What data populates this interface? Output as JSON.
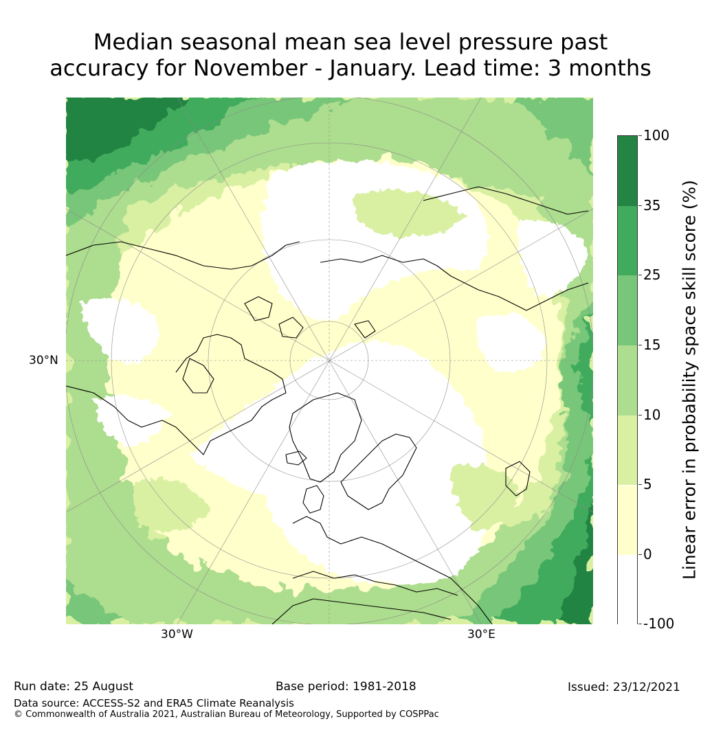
{
  "title": {
    "line1": "Median seasonal mean sea level pressure past",
    "line2": "accuracy for November - January. Lead time: 3 months"
  },
  "map": {
    "projection": "north-polar-stereographic",
    "lat_label": "30°N",
    "lon_labels": [
      "30°W",
      "30°E"
    ],
    "land_outline_color": "#000000",
    "graticule_color": "#8a8a8a"
  },
  "colorbar": {
    "title": "Linear error in probability space skill score (%)",
    "levels": [
      "100",
      "35",
      "25",
      "15",
      "10",
      "5",
      "0",
      "-100"
    ],
    "bins": [
      {
        "range": "35 to 100",
        "color": "#238443"
      },
      {
        "range": "25 to 35",
        "color": "#41ab5d"
      },
      {
        "range": "15 to 25",
        "color": "#78c679"
      },
      {
        "range": "10 to 15",
        "color": "#addd8e"
      },
      {
        "range": "5 to 10",
        "color": "#d9f0a3"
      },
      {
        "range": "0 to 5",
        "color": "#ffffcc"
      },
      {
        "range": "-100 to 0",
        "color": "#ffffff"
      }
    ]
  },
  "footer": {
    "run_date": "Run date: 25 August",
    "base_period": "Base period: 1981-2018",
    "issued": "Issued: 23/12/2021",
    "data_source": "Data source: ACCESS-S2 and ERA5 Climate Reanalysis",
    "copyright": "© Commonwealth of Australia 2021, Australian Bureau of Meteorology, Supported by COSPPac"
  }
}
